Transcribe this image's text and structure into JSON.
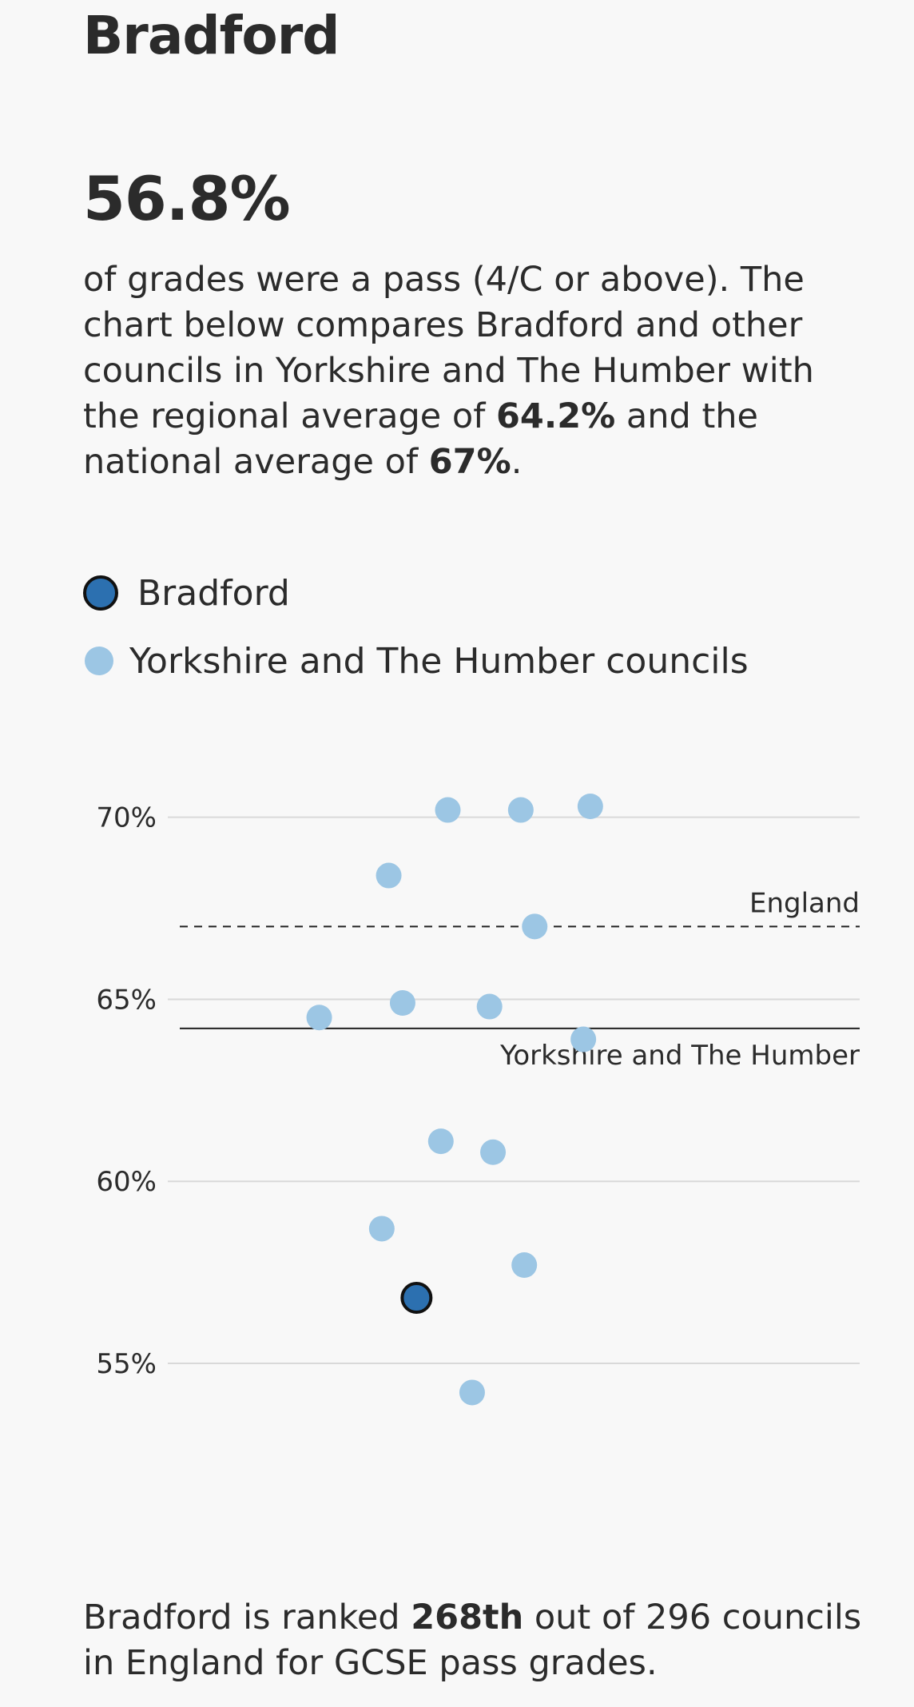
{
  "area": {
    "title": "Bradford",
    "pass_rate": "56.8%"
  },
  "description": {
    "part1": "of grades were a pass (4/C or above). The chart below compares Bradford and other councils in Yorkshire and The Humber with the regional average of ",
    "regional_avg": "64.2%",
    "part2": " and the national average of ",
    "national_avg": "67%",
    "part3": "."
  },
  "legend": {
    "highlight_label": "Bradford",
    "others_label": "Yorkshire and The Humber councils"
  },
  "colors": {
    "highlight_fill": "#2c70b0",
    "highlight_stroke": "#111111",
    "others_fill": "#9cc6e4",
    "gridline": "#d9d9d9",
    "reference_line": "#222222"
  },
  "ranking": {
    "part1": "Bradford is ranked ",
    "rank": "268th",
    "part2": " out of 296 councils in England for GCSE pass grades."
  },
  "chart_data": {
    "type": "scatter",
    "ylabel": "",
    "ylim": [
      53.2,
      71.2
    ],
    "yticks": [
      {
        "value": 70,
        "label": "70%"
      },
      {
        "value": 65,
        "label": "65%"
      },
      {
        "value": 60,
        "label": "60%"
      },
      {
        "value": 55,
        "label": "55%"
      }
    ],
    "reference_lines": [
      {
        "label": "England",
        "value": 67,
        "style": "dashed",
        "label_position": "above-right"
      },
      {
        "label": "Yorkshire and The Humber",
        "value": 64.2,
        "style": "solid",
        "label_position": "below-right"
      }
    ],
    "series": [
      {
        "name": "Yorkshire and The Humber councils",
        "role": "others",
        "points": [
          {
            "jitter": 0.3,
            "value": 70.2
          },
          {
            "jitter": 0.51,
            "value": 70.2
          },
          {
            "jitter": 0.71,
            "value": 70.3
          },
          {
            "jitter": 0.13,
            "value": 68.4
          },
          {
            "jitter": 0.55,
            "value": 67.0
          },
          {
            "jitter": -0.07,
            "value": 64.5
          },
          {
            "jitter": 0.17,
            "value": 64.9
          },
          {
            "jitter": 0.42,
            "value": 64.8
          },
          {
            "jitter": 0.69,
            "value": 63.9
          },
          {
            "jitter": 0.28,
            "value": 61.1
          },
          {
            "jitter": 0.43,
            "value": 60.8
          },
          {
            "jitter": 0.11,
            "value": 58.7
          },
          {
            "jitter": 0.52,
            "value": 57.7
          },
          {
            "jitter": 0.37,
            "value": 54.2
          }
        ]
      },
      {
        "name": "Bradford",
        "role": "highlight",
        "points": [
          {
            "jitter": 0.21,
            "value": 56.8
          }
        ]
      }
    ]
  }
}
